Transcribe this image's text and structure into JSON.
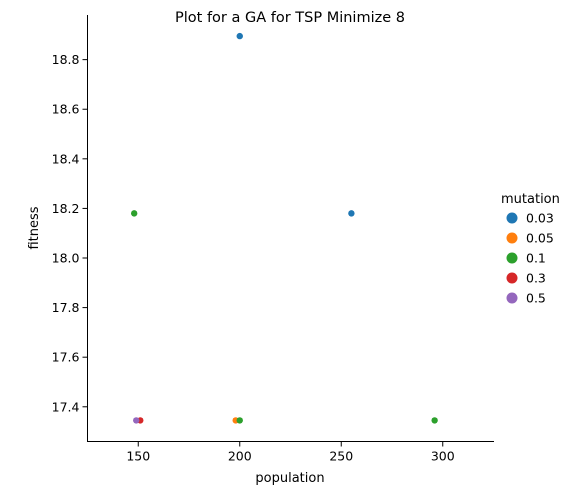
{
  "chart_data": {
    "type": "scatter",
    "title": "Plot for a GA for TSP Minimize 8",
    "xlabel": "population",
    "ylabel": "fitness",
    "xlim": [
      125,
      325
    ],
    "ylim": [
      17.26,
      18.98
    ],
    "xticks": [
      150,
      200,
      250,
      300
    ],
    "yticks": [
      17.4,
      17.6,
      17.8,
      18.0,
      18.2,
      18.4,
      18.6,
      18.8
    ],
    "grid": false,
    "legend": {
      "title": "mutation",
      "placement": "right"
    },
    "series": [
      {
        "name": "0.03",
        "color": "#1f77b4",
        "points": [
          [
            200,
            18.895
          ],
          [
            255,
            18.18
          ]
        ]
      },
      {
        "name": "0.05",
        "color": "#ff7f0e",
        "points": [
          [
            198,
            17.345
          ]
        ]
      },
      {
        "name": "0.1",
        "color": "#2ca02c",
        "points": [
          [
            148,
            18.18
          ],
          [
            200,
            17.345
          ],
          [
            296,
            17.345
          ]
        ]
      },
      {
        "name": "0.3",
        "color": "#d62728",
        "points": [
          [
            151,
            17.345
          ]
        ]
      },
      {
        "name": "0.5",
        "color": "#9467bd",
        "points": [
          [
            149,
            17.345
          ]
        ]
      }
    ]
  }
}
